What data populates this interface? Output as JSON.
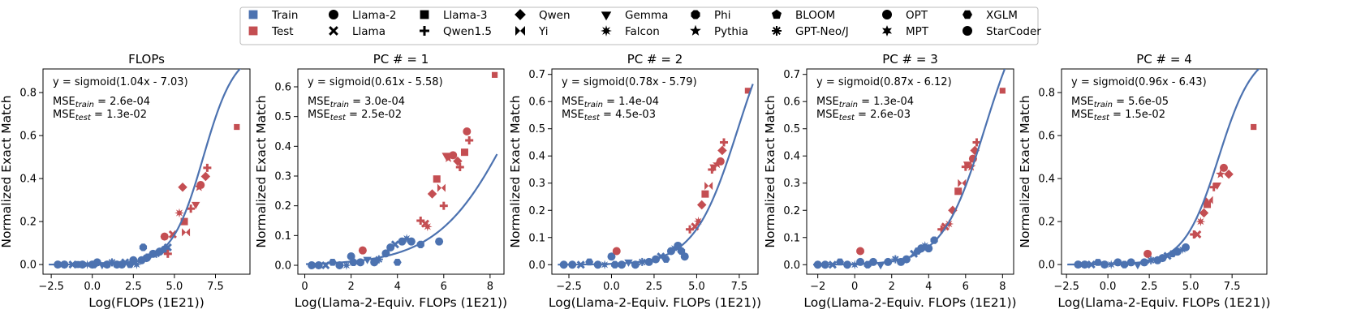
{
  "colors": {
    "train": "#4c72b0",
    "test": "#c44e52",
    "fit": "#4c72b0"
  },
  "legend": {
    "entries": [
      {
        "label": "Train",
        "marker": "square",
        "color": "#4c72b0"
      },
      {
        "label": "Test",
        "marker": "square",
        "color": "#c44e52"
      },
      {
        "label": "Llama-2",
        "marker": "circle"
      },
      {
        "label": "Llama",
        "marker": "x"
      },
      {
        "label": "Llama-3",
        "marker": "square"
      },
      {
        "label": "Qwen1.5",
        "marker": "plus"
      },
      {
        "label": "Qwen",
        "marker": "diamond"
      },
      {
        "label": "Yi",
        "marker": "bowtie"
      },
      {
        "label": "Gemma",
        "marker": "triangle-down"
      },
      {
        "label": "Falcon",
        "marker": "star8"
      },
      {
        "label": "Phi",
        "marker": "octagon"
      },
      {
        "label": "Pythia",
        "marker": "star5"
      },
      {
        "label": "BLOOM",
        "marker": "pentagon"
      },
      {
        "label": "GPT-Neo/J",
        "marker": "asterisk"
      },
      {
        "label": "OPT",
        "marker": "circle"
      },
      {
        "label": "MPT",
        "marker": "star6"
      },
      {
        "label": "XGLM",
        "marker": "hexagon"
      },
      {
        "label": "StarCoder",
        "marker": "circle"
      }
    ]
  },
  "chart_data": [
    {
      "type": "scatter",
      "title": "FLOPs",
      "xlabel": "Log(FLOPs (1E21))",
      "ylabel": "Normalized Exact Match",
      "xlim": [
        -3,
        9.6
      ],
      "ylim": [
        -0.045,
        0.91
      ],
      "xticks": [
        -2.5,
        0.0,
        2.5,
        5.0,
        7.5
      ],
      "xtick_labels": [
        "−2.5",
        "0.0",
        "2.5",
        "5.0",
        "7.5"
      ],
      "yticks": [
        0.0,
        0.2,
        0.4,
        0.6,
        0.8
      ],
      "ytick_labels": [
        "0.0",
        "0.2",
        "0.4",
        "0.6",
        "0.8"
      ],
      "fit": {
        "a": 1.04,
        "b": -7.03
      },
      "equation": "y = sigmoid(1.04x - 7.03)",
      "mse_train_label": "MSE",
      "mse_train_sub": "train",
      "mse_train_value": " = 2.6e-04",
      "mse_test_label": "MSE",
      "mse_test_sub": "test",
      "mse_test_value": " = 1.3e-02",
      "train": [
        [
          -2.1,
          0.0
        ],
        [
          -1.7,
          0.0
        ],
        [
          -1.2,
          0.0
        ],
        [
          -0.9,
          0.0
        ],
        [
          -0.6,
          0.0
        ],
        [
          -0.3,
          0.0
        ],
        [
          0.0,
          0.0
        ],
        [
          0.1,
          0.0
        ],
        [
          0.3,
          0.01
        ],
        [
          0.6,
          0.0
        ],
        [
          0.9,
          0.0
        ],
        [
          1.2,
          0.01
        ],
        [
          1.5,
          0.0
        ],
        [
          1.8,
          0.0
        ],
        [
          2.0,
          0.01
        ],
        [
          2.3,
          0.0
        ],
        [
          2.5,
          0.02
        ],
        [
          2.7,
          0.0
        ],
        [
          3.0,
          0.02
        ],
        [
          3.1,
          0.08
        ],
        [
          3.3,
          0.03
        ],
        [
          3.5,
          0.04
        ],
        [
          3.7,
          0.05
        ],
        [
          3.9,
          0.05
        ],
        [
          4.1,
          0.06
        ],
        [
          4.4,
          0.07
        ],
        [
          4.6,
          0.08
        ]
      ],
      "test": [
        [
          4.4,
          0.13
        ],
        [
          4.6,
          0.05
        ],
        [
          4.9,
          0.14
        ],
        [
          5.3,
          0.24
        ],
        [
          5.5,
          0.36
        ],
        [
          5.6,
          0.2
        ],
        [
          5.7,
          0.15
        ],
        [
          6.0,
          0.26
        ],
        [
          6.3,
          0.28
        ],
        [
          6.5,
          0.36
        ],
        [
          6.6,
          0.37
        ],
        [
          6.9,
          0.41
        ],
        [
          7.0,
          0.45
        ],
        [
          8.8,
          0.64
        ]
      ]
    },
    {
      "type": "scatter",
      "title": "PC # = 1",
      "xlabel": "Log(Llama-2-Equiv. FLOPs (1E21))",
      "ylabel": "Normalized Exact Match",
      "xlim": [
        -0.3,
        8.6
      ],
      "ylim": [
        -0.03,
        0.66
      ],
      "xticks": [
        0,
        2,
        4,
        6,
        8
      ],
      "xtick_labels": [
        "0",
        "2",
        "4",
        "6",
        "8"
      ],
      "yticks": [
        0.0,
        0.1,
        0.2,
        0.3,
        0.4,
        0.5,
        0.6
      ],
      "ytick_labels": [
        "0.0",
        "0.1",
        "0.2",
        "0.3",
        "0.4",
        "0.5",
        "0.6"
      ],
      "fit": {
        "a": 0.61,
        "b": -5.58
      },
      "equation": "y = sigmoid(0.61x - 5.58)",
      "mse_train_label": "MSE",
      "mse_train_sub": "train",
      "mse_train_value": " = 3.0e-04",
      "mse_test_label": "MSE",
      "mse_test_sub": "test",
      "mse_test_value": " = 2.5e-02",
      "train": [
        [
          0.3,
          0.0
        ],
        [
          0.6,
          0.0
        ],
        [
          0.9,
          0.0
        ],
        [
          1.2,
          0.01
        ],
        [
          1.5,
          0.0
        ],
        [
          1.8,
          0.0
        ],
        [
          2.0,
          0.03
        ],
        [
          2.1,
          0.01
        ],
        [
          2.4,
          0.01
        ],
        [
          2.7,
          0.02
        ],
        [
          3.0,
          0.01
        ],
        [
          3.2,
          0.02
        ],
        [
          3.5,
          0.04
        ],
        [
          3.7,
          0.06
        ],
        [
          3.9,
          0.07
        ],
        [
          4.0,
          0.01
        ],
        [
          4.2,
          0.08
        ],
        [
          4.4,
          0.09
        ],
        [
          4.6,
          0.08
        ],
        [
          5.0,
          0.07
        ],
        [
          5.8,
          0.08
        ]
      ],
      "test": [
        [
          2.5,
          0.05
        ],
        [
          5.0,
          0.15
        ],
        [
          5.2,
          0.14
        ],
        [
          5.3,
          0.13
        ],
        [
          5.5,
          0.24
        ],
        [
          5.7,
          0.29
        ],
        [
          5.9,
          0.26
        ],
        [
          6.0,
          0.2
        ],
        [
          6.1,
          0.37
        ],
        [
          6.2,
          0.36
        ],
        [
          6.4,
          0.37
        ],
        [
          6.6,
          0.35
        ],
        [
          6.7,
          0.33
        ],
        [
          6.9,
          0.38
        ],
        [
          7.0,
          0.45
        ],
        [
          7.1,
          0.42
        ],
        [
          8.2,
          0.64
        ]
      ]
    },
    {
      "type": "scatter",
      "title": "PC # = 2",
      "xlabel": "Log(Llama-2-Equiv. FLOPs (1E21))",
      "ylabel": "Normalized Exact Match",
      "xlim": [
        -3.5,
        8.6
      ],
      "ylim": [
        -0.035,
        0.72
      ],
      "xticks": [
        -2.5,
        0.0,
        2.5,
        5.0,
        7.5
      ],
      "xtick_labels": [
        "−2.5",
        "0.0",
        "2.5",
        "5.0",
        "7.5"
      ],
      "yticks": [
        0.0,
        0.1,
        0.2,
        0.3,
        0.4,
        0.5,
        0.6,
        0.7
      ],
      "ytick_labels": [
        "0.0",
        "0.1",
        "0.2",
        "0.3",
        "0.4",
        "0.5",
        "0.6",
        "0.7"
      ],
      "fit": {
        "a": 0.78,
        "b": -5.79
      },
      "equation": "y = sigmoid(0.78x - 5.79)",
      "mse_train_label": "MSE",
      "mse_train_sub": "train",
      "mse_train_value": " = 1.4e-04",
      "mse_test_label": "MSE",
      "mse_test_sub": "test",
      "mse_test_value": " = 4.5e-03",
      "train": [
        [
          -2.8,
          0.0
        ],
        [
          -2.3,
          0.0
        ],
        [
          -1.8,
          0.0
        ],
        [
          -1.3,
          0.01
        ],
        [
          -0.8,
          0.0
        ],
        [
          -0.4,
          0.0
        ],
        [
          0.0,
          0.03
        ],
        [
          0.2,
          0.0
        ],
        [
          0.6,
          0.0
        ],
        [
          1.0,
          0.01
        ],
        [
          1.4,
          0.0
        ],
        [
          1.8,
          0.01
        ],
        [
          2.2,
          0.01
        ],
        [
          2.6,
          0.02
        ],
        [
          2.9,
          0.03
        ],
        [
          3.2,
          0.02
        ],
        [
          3.5,
          0.05
        ],
        [
          3.7,
          0.06
        ],
        [
          3.9,
          0.07
        ],
        [
          4.1,
          0.05
        ],
        [
          4.3,
          0.03
        ]
      ],
      "test": [
        [
          0.3,
          0.05
        ],
        [
          4.6,
          0.13
        ],
        [
          4.9,
          0.14
        ],
        [
          5.1,
          0.16
        ],
        [
          5.3,
          0.22
        ],
        [
          5.5,
          0.26
        ],
        [
          5.7,
          0.29
        ],
        [
          5.9,
          0.35
        ],
        [
          6.0,
          0.36
        ],
        [
          6.2,
          0.37
        ],
        [
          6.4,
          0.38
        ],
        [
          6.5,
          0.42
        ],
        [
          6.6,
          0.45
        ],
        [
          8.0,
          0.64
        ]
      ]
    },
    {
      "type": "scatter",
      "title": "PC # = 3",
      "xlabel": "Log(Llama-2-Equiv. FLOPs (1E21))",
      "ylabel": "Normalized Exact Match",
      "xlim": [
        -2.6,
        8.6
      ],
      "ylim": [
        -0.035,
        0.72
      ],
      "xticks": [
        -2,
        0,
        2,
        4,
        6,
        8
      ],
      "xtick_labels": [
        "−2",
        "0",
        "2",
        "4",
        "6",
        "8"
      ],
      "yticks": [
        0.0,
        0.1,
        0.2,
        0.3,
        0.4,
        0.5,
        0.6,
        0.7
      ],
      "ytick_labels": [
        "0.0",
        "0.1",
        "0.2",
        "0.3",
        "0.4",
        "0.5",
        "0.6",
        "0.7"
      ],
      "fit": {
        "a": 0.87,
        "b": -6.12
      },
      "equation": "y = sigmoid(0.87x - 6.12)",
      "mse_train_label": "MSE",
      "mse_train_sub": "train",
      "mse_train_value": " = 1.3e-04",
      "mse_test_label": "MSE",
      "mse_test_sub": "test",
      "mse_test_value": " = 2.6e-03",
      "train": [
        [
          -2.0,
          0.0
        ],
        [
          -1.6,
          0.0
        ],
        [
          -1.2,
          0.0
        ],
        [
          -0.8,
          0.01
        ],
        [
          -0.4,
          0.0
        ],
        [
          0.0,
          0.0
        ],
        [
          0.3,
          0.01
        ],
        [
          0.7,
          0.0
        ],
        [
          1.0,
          0.01
        ],
        [
          1.4,
          0.0
        ],
        [
          1.8,
          0.01
        ],
        [
          2.2,
          0.02
        ],
        [
          2.5,
          0.01
        ],
        [
          2.8,
          0.02
        ],
        [
          3.2,
          0.04
        ],
        [
          3.4,
          0.05
        ],
        [
          3.6,
          0.06
        ],
        [
          3.8,
          0.07
        ],
        [
          4.0,
          0.06
        ],
        [
          4.3,
          0.09
        ]
      ],
      "test": [
        [
          0.3,
          0.05
        ],
        [
          4.7,
          0.13
        ],
        [
          4.9,
          0.14
        ],
        [
          5.1,
          0.15
        ],
        [
          5.3,
          0.2
        ],
        [
          5.6,
          0.27
        ],
        [
          5.8,
          0.3
        ],
        [
          6.0,
          0.36
        ],
        [
          6.1,
          0.37
        ],
        [
          6.3,
          0.36
        ],
        [
          6.4,
          0.39
        ],
        [
          6.5,
          0.42
        ],
        [
          6.6,
          0.45
        ],
        [
          8.0,
          0.64
        ]
      ]
    },
    {
      "type": "scatter",
      "title": "PC # = 4",
      "xlabel": "Log(Llama-2-Equiv. FLOPs (1E21))",
      "ylabel": "Normalized Exact Match",
      "xlim": [
        -2.8,
        9.6
      ],
      "ylim": [
        -0.045,
        0.91
      ],
      "xticks": [
        -2.5,
        0.0,
        2.5,
        5.0,
        7.5
      ],
      "xtick_labels": [
        "−2.5",
        "0.0",
        "2.5",
        "5.0",
        "7.5"
      ],
      "yticks": [
        0.0,
        0.2,
        0.4,
        0.6,
        0.8
      ],
      "ytick_labels": [
        "0.0",
        "0.2",
        "0.4",
        "0.6",
        "0.8"
      ],
      "fit": {
        "a": 0.96,
        "b": -6.43
      },
      "equation": "y = sigmoid(0.96x - 6.43)",
      "mse_train_label": "MSE",
      "mse_train_sub": "train",
      "mse_train_value": " = 5.6e-05",
      "mse_test_label": "MSE",
      "mse_test_sub": "test",
      "mse_test_value": " = 1.5e-02",
      "train": [
        [
          -1.8,
          0.0
        ],
        [
          -1.4,
          0.0
        ],
        [
          -1.0,
          0.0
        ],
        [
          -0.6,
          0.01
        ],
        [
          -0.2,
          0.0
        ],
        [
          0.2,
          0.0
        ],
        [
          0.6,
          0.01
        ],
        [
          1.0,
          0.0
        ],
        [
          1.4,
          0.01
        ],
        [
          1.8,
          0.0
        ],
        [
          2.2,
          0.01
        ],
        [
          2.6,
          0.02
        ],
        [
          3.0,
          0.02
        ],
        [
          3.3,
          0.03
        ],
        [
          3.6,
          0.04
        ],
        [
          3.9,
          0.05
        ],
        [
          4.2,
          0.06
        ],
        [
          4.5,
          0.07
        ],
        [
          4.7,
          0.08
        ]
      ],
      "test": [
        [
          2.4,
          0.05
        ],
        [
          5.2,
          0.14
        ],
        [
          5.4,
          0.14
        ],
        [
          5.6,
          0.2
        ],
        [
          5.8,
          0.24
        ],
        [
          6.0,
          0.28
        ],
        [
          6.1,
          0.3
        ],
        [
          6.4,
          0.36
        ],
        [
          6.6,
          0.37
        ],
        [
          6.8,
          0.42
        ],
        [
          7.0,
          0.45
        ],
        [
          7.3,
          0.42
        ],
        [
          8.8,
          0.64
        ]
      ]
    }
  ]
}
